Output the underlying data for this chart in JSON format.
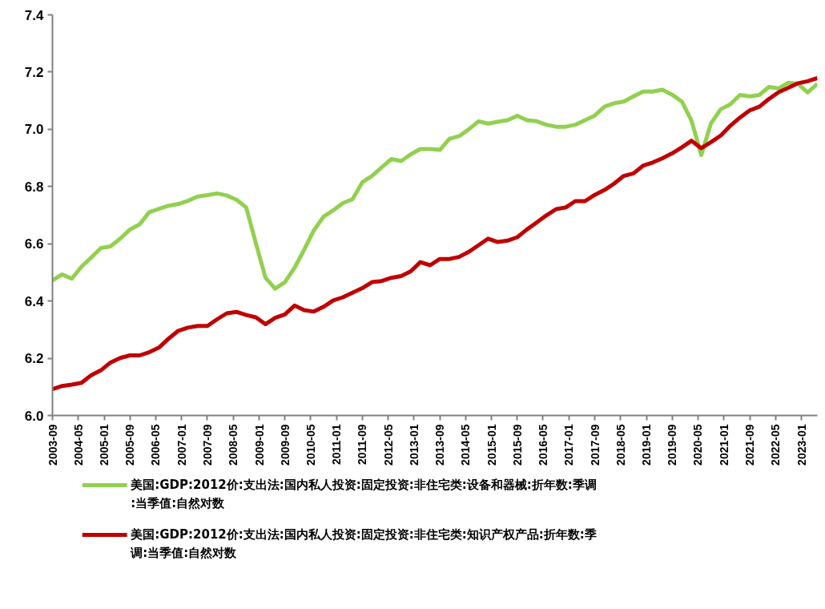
{
  "chart_data": {
    "type": "line",
    "x": [
      "2003-09",
      "2003-12",
      "2004-03",
      "2004-06",
      "2004-09",
      "2004-12",
      "2005-03",
      "2005-06",
      "2005-09",
      "2005-12",
      "2006-03",
      "2006-06",
      "2006-09",
      "2006-12",
      "2007-03",
      "2007-06",
      "2007-09",
      "2007-12",
      "2008-03",
      "2008-06",
      "2008-09",
      "2008-12",
      "2009-03",
      "2009-06",
      "2009-09",
      "2009-12",
      "2010-03",
      "2010-06",
      "2010-09",
      "2010-12",
      "2011-03",
      "2011-06",
      "2011-09",
      "2011-12",
      "2012-03",
      "2012-06",
      "2012-09",
      "2012-12",
      "2013-03",
      "2013-06",
      "2013-09",
      "2013-12",
      "2014-03",
      "2014-06",
      "2014-09",
      "2014-12",
      "2015-03",
      "2015-06",
      "2015-09",
      "2015-12",
      "2016-03",
      "2016-06",
      "2016-09",
      "2016-12",
      "2017-03",
      "2017-06",
      "2017-09",
      "2017-12",
      "2018-03",
      "2018-06",
      "2018-09",
      "2018-12",
      "2019-03",
      "2019-06",
      "2019-09",
      "2019-12",
      "2020-03",
      "2020-06",
      "2020-09",
      "2020-12",
      "2021-03",
      "2021-06",
      "2021-09",
      "2021-12",
      "2022-03",
      "2022-06",
      "2022-09",
      "2022-12",
      "2023-03",
      "2023-06"
    ],
    "series": [
      {
        "name": "美国:GDP:2012价:支出法:国内私人投资:固定投资:非住宅类:设备和器械:折年数:季调:当季值:自然对数",
        "color": "#92d050",
        "values": [
          6.472,
          6.493,
          6.478,
          6.52,
          6.552,
          6.585,
          6.591,
          6.618,
          6.65,
          6.668,
          6.71,
          6.722,
          6.733,
          6.739,
          6.75,
          6.765,
          6.77,
          6.776,
          6.769,
          6.754,
          6.727,
          6.602,
          6.482,
          6.443,
          6.466,
          6.516,
          6.579,
          6.647,
          6.695,
          6.717,
          6.742,
          6.756,
          6.815,
          6.837,
          6.867,
          6.896,
          6.889,
          6.913,
          6.931,
          6.931,
          6.928,
          6.967,
          6.976,
          7.0,
          7.028,
          7.02,
          7.026,
          7.032,
          7.047,
          7.032,
          7.028,
          7.016,
          7.009,
          7.009,
          7.016,
          7.032,
          7.048,
          7.079,
          7.091,
          7.097,
          7.115,
          7.132,
          7.132,
          7.138,
          7.121,
          7.097,
          7.03,
          6.91,
          7.021,
          7.07,
          7.087,
          7.12,
          7.115,
          7.12,
          7.148,
          7.143,
          7.163,
          7.159,
          7.129,
          7.159
        ]
      },
      {
        "name": "美国:GDP:2012价:支出法:国内私人投资:固定投资:非住宅类:知识产权产品:折年数:季调:当季值:自然对数",
        "color": "#c00000",
        "values": [
          6.092,
          6.103,
          6.108,
          6.114,
          6.141,
          6.158,
          6.185,
          6.201,
          6.21,
          6.21,
          6.221,
          6.237,
          6.269,
          6.296,
          6.307,
          6.313,
          6.313,
          6.336,
          6.357,
          6.362,
          6.351,
          6.343,
          6.319,
          6.341,
          6.353,
          6.384,
          6.368,
          6.363,
          6.38,
          6.402,
          6.413,
          6.429,
          6.445,
          6.466,
          6.47,
          6.481,
          6.487,
          6.504,
          6.536,
          6.525,
          6.547,
          6.547,
          6.554,
          6.572,
          6.595,
          6.618,
          6.606,
          6.611,
          6.623,
          6.65,
          6.674,
          6.699,
          6.721,
          6.727,
          6.749,
          6.749,
          6.771,
          6.788,
          6.81,
          6.837,
          6.846,
          6.873,
          6.884,
          6.899,
          6.916,
          6.937,
          6.96,
          6.934,
          6.955,
          6.978,
          7.012,
          7.041,
          7.066,
          7.079,
          7.106,
          7.13,
          7.145,
          7.161,
          7.168,
          7.179
        ]
      }
    ],
    "xlim": [
      "2003-09",
      "2023-06"
    ],
    "xticks": [
      "2003-09",
      "2004-05",
      "2005-01",
      "2005-09",
      "2006-05",
      "2007-01",
      "2007-09",
      "2008-05",
      "2009-01",
      "2009-09",
      "2010-05",
      "2011-01",
      "2011-09",
      "2012-05",
      "2013-01",
      "2013-09",
      "2014-05",
      "2015-01",
      "2015-09",
      "2016-05",
      "2017-01",
      "2017-09",
      "2018-05",
      "2019-01",
      "2019-09",
      "2020-05",
      "2021-01",
      "2021-09",
      "2022-05",
      "2023-01"
    ],
    "ylim": [
      6.0,
      7.4
    ],
    "yticks": [
      {
        "value": 6.0,
        "label": "6.0"
      },
      {
        "value": 6.2,
        "label": "6.2"
      },
      {
        "value": 6.4,
        "label": "6.4"
      },
      {
        "value": 6.6,
        "label": "6.6"
      },
      {
        "value": 6.8,
        "label": "6.8"
      },
      {
        "value": 7.0,
        "label": "7.0"
      },
      {
        "value": 7.2,
        "label": "7.2"
      },
      {
        "value": 7.4,
        "label": "7.4"
      }
    ],
    "grid": false,
    "legend": "bottom",
    "marker": "none",
    "line_style": "solid"
  }
}
